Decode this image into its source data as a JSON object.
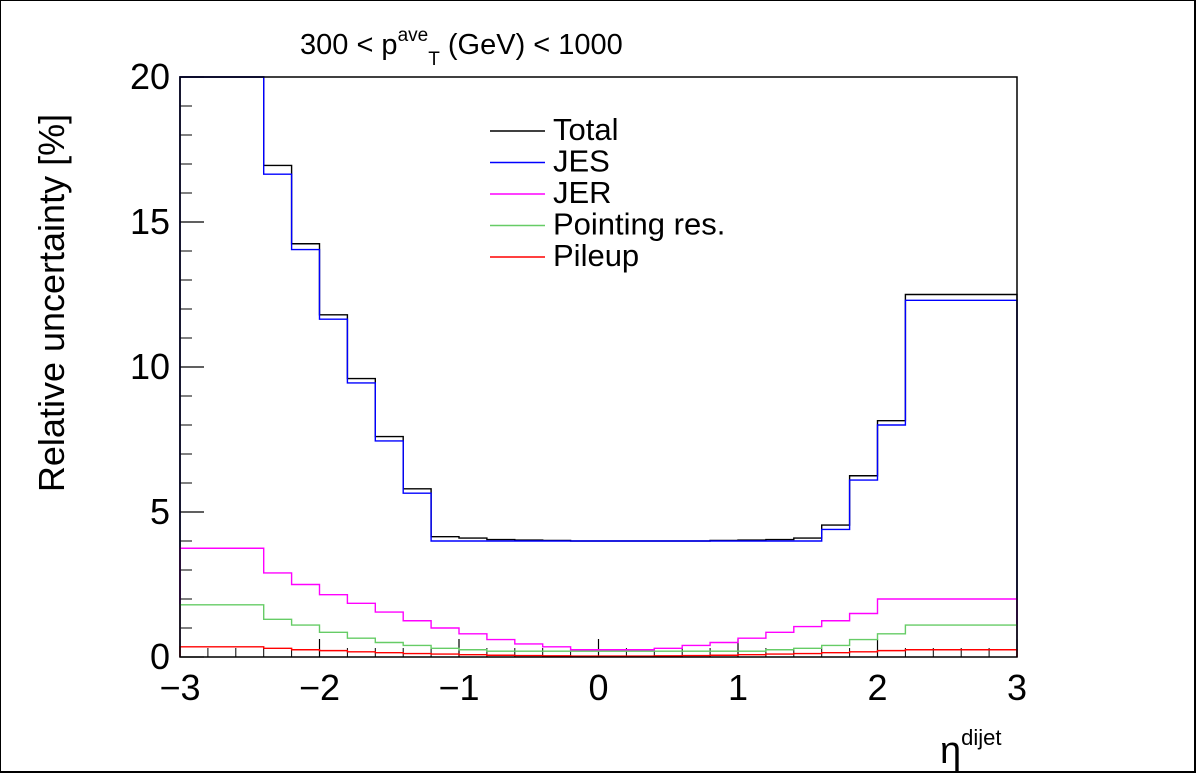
{
  "chart_data": {
    "type": "step-histogram",
    "title_prefix": "300 < p",
    "title_sup": "ave",
    "title_sub": "T",
    "title_suffix": " (GeV) < 1000",
    "ylabel": "Relative uncertainty [%]",
    "xlabel_base": "η",
    "xlabel_sup": "dijet",
    "xlim": [
      -3,
      3
    ],
    "ylim": [
      0,
      20
    ],
    "xticks": [
      -3,
      -2,
      -1,
      0,
      1,
      2,
      3
    ],
    "xtick_labels": [
      "−3",
      "−2",
      "−1",
      "0",
      "1",
      "2",
      "3"
    ],
    "yticks": [
      0,
      5,
      10,
      15,
      20
    ],
    "ytick_labels": [
      "0",
      "5",
      "10",
      "15",
      "20"
    ],
    "grid": false,
    "legend_position": "top-center",
    "bin_edges": [
      -3.0,
      -2.4,
      -2.2,
      -2.0,
      -1.8,
      -1.6,
      -1.4,
      -1.2,
      -1.0,
      -0.8,
      -0.6,
      -0.4,
      -0.2,
      0.0,
      0.2,
      0.4,
      0.6,
      0.8,
      1.0,
      1.2,
      1.4,
      1.6,
      1.8,
      2.0,
      2.2,
      2.4,
      3.0
    ],
    "series": [
      {
        "name": "Total",
        "color": "#000000",
        "values": [
          20.0,
          16.95,
          14.25,
          11.8,
          9.6,
          7.6,
          5.8,
          4.15,
          4.1,
          4.05,
          4.03,
          4.02,
          4.0,
          4.0,
          4.0,
          4.0,
          4.0,
          4.02,
          4.03,
          4.05,
          4.1,
          4.55,
          6.25,
          8.15,
          12.5,
          12.5
        ]
      },
      {
        "name": "JES",
        "color": "#0000ff",
        "values": [
          20.0,
          16.65,
          14.05,
          11.65,
          9.45,
          7.45,
          5.65,
          4.0,
          4.0,
          4.0,
          4.0,
          4.0,
          4.0,
          4.0,
          4.0,
          4.0,
          4.0,
          4.0,
          4.0,
          4.0,
          4.0,
          4.4,
          6.1,
          8.0,
          12.3,
          12.3
        ]
      },
      {
        "name": "JER",
        "color": "#ff00ff",
        "values": [
          3.75,
          2.9,
          2.5,
          2.15,
          1.85,
          1.55,
          1.25,
          1.0,
          0.8,
          0.6,
          0.45,
          0.35,
          0.25,
          0.25,
          0.25,
          0.3,
          0.4,
          0.5,
          0.65,
          0.85,
          1.05,
          1.25,
          1.5,
          2.0,
          2.0,
          2.0
        ]
      },
      {
        "name": "Pointing res.",
        "color": "#66cc66",
        "values": [
          1.8,
          1.3,
          1.1,
          0.85,
          0.65,
          0.5,
          0.4,
          0.3,
          0.25,
          0.2,
          0.2,
          0.2,
          0.2,
          0.2,
          0.2,
          0.2,
          0.2,
          0.2,
          0.2,
          0.25,
          0.3,
          0.4,
          0.6,
          0.8,
          1.1,
          1.1
        ]
      },
      {
        "name": "Pileup",
        "color": "#ff0000",
        "values": [
          0.35,
          0.3,
          0.25,
          0.22,
          0.18,
          0.15,
          0.12,
          0.1,
          0.08,
          0.06,
          0.05,
          0.04,
          0.03,
          0.03,
          0.03,
          0.04,
          0.05,
          0.06,
          0.08,
          0.1,
          0.12,
          0.15,
          0.18,
          0.22,
          0.25,
          0.25
        ]
      }
    ]
  }
}
